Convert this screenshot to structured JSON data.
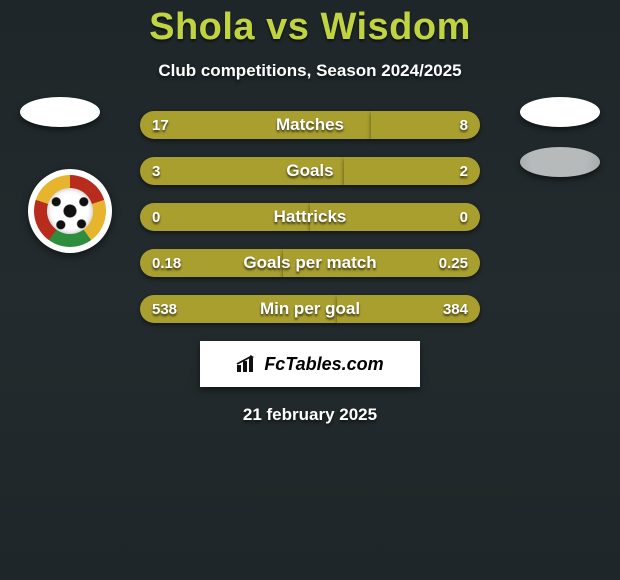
{
  "title": "Shola vs Wisdom",
  "subtitle": "Club competitions, Season 2024/2025",
  "date": "21 february 2025",
  "watermark": "FcTables.com",
  "colors": {
    "leftBar": "#a99f2f",
    "rightBar": "#a99f2f",
    "accent": "#c0d341"
  },
  "rows": [
    {
      "left": "17",
      "right": "8",
      "label": "Matches",
      "leftW": 68,
      "rightW": 32
    },
    {
      "left": "3",
      "right": "2",
      "label": "Goals",
      "leftW": 60,
      "rightW": 40
    },
    {
      "left": "0",
      "right": "0",
      "label": "Hattricks",
      "leftW": 50,
      "rightW": 50
    },
    {
      "left": "0.18",
      "right": "0.25",
      "label": "Goals per match",
      "leftW": 42,
      "rightW": 58
    },
    {
      "left": "538",
      "right": "384",
      "label": "Min per goal",
      "leftW": 58,
      "rightW": 42
    }
  ]
}
